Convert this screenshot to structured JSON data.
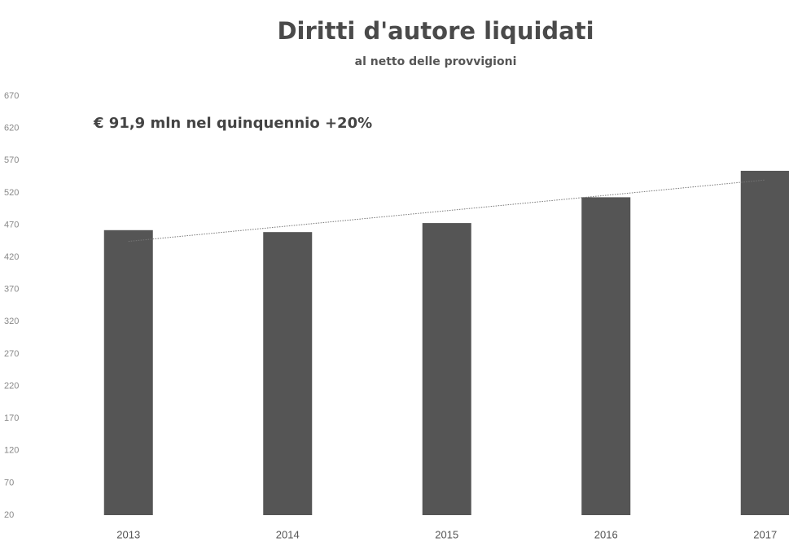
{
  "chart_data": {
    "type": "bar",
    "title": "Diritti d'autore liquidati",
    "subtitle": "al netto delle provvigioni",
    "annotation": "€ 91,9 mln nel quinquennio  +20%",
    "categories": [
      "2013",
      "2014",
      "2015",
      "2016",
      "2017"
    ],
    "values": [
      462,
      459,
      473,
      513,
      554
    ],
    "color": "#555555",
    "trendline": true,
    "ylim": [
      20,
      670
    ],
    "yticks": [
      20,
      70,
      120,
      170,
      220,
      270,
      320,
      370,
      420,
      470,
      520,
      570,
      620,
      670
    ],
    "grid": false
  }
}
